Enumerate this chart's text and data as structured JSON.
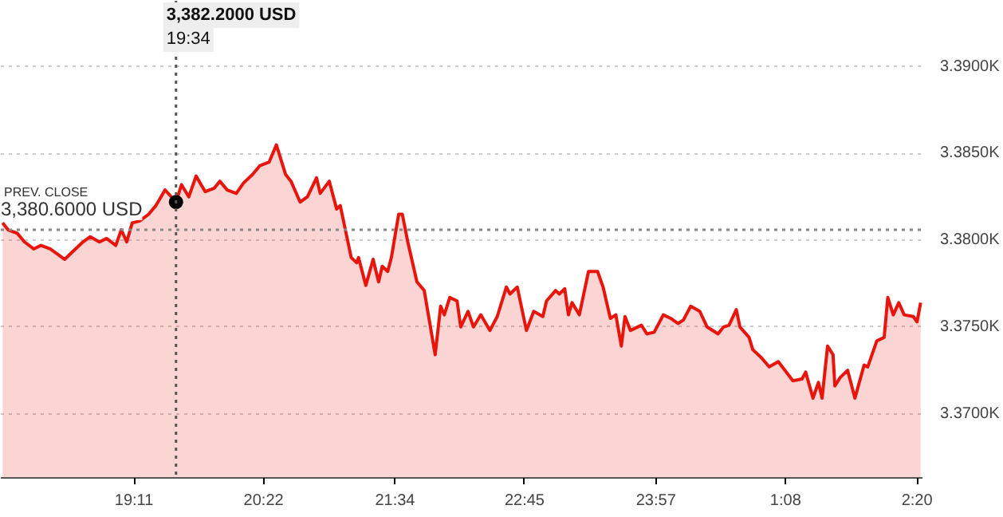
{
  "chart_data": {
    "type": "area",
    "xlim": [
      "2000-01-01T17:58",
      "2000-01-02T02:23"
    ],
    "ylim": [
      3366.3,
      3393.8
    ],
    "xticks": [
      {
        "value": "2000-01-01T19:11",
        "label": "19:11"
      },
      {
        "value": "2000-01-01T20:22",
        "label": "20:22"
      },
      {
        "value": "2000-01-01T21:34",
        "label": "21:34"
      },
      {
        "value": "2000-01-01T22:45",
        "label": "22:45"
      },
      {
        "value": "2000-01-01T23:57",
        "label": "23:57"
      },
      {
        "value": "2000-01-02T01:08",
        "label": "1:08"
      },
      {
        "value": "2000-01-02T02:20",
        "label": "2:20"
      }
    ],
    "yticks": [
      {
        "value": 3370,
        "label": "3.3700K"
      },
      {
        "value": 3375,
        "label": "3.3750K"
      },
      {
        "value": 3380,
        "label": "3.3800K"
      },
      {
        "value": 3385,
        "label": "3.3850K"
      },
      {
        "value": 3390,
        "label": "3.3900K"
      }
    ],
    "grid": "y",
    "series": [
      {
        "color": "#e8150d",
        "x": [
          "2000-01-01T17:59",
          "2000-01-01T18:02",
          "2000-01-01T18:07",
          "2000-01-01T18:11",
          "2000-01-01T18:16",
          "2000-01-01T18:20",
          "2000-01-01T18:25",
          "2000-01-01T18:29",
          "2000-01-01T18:33",
          "2000-01-01T18:37",
          "2000-01-01T18:43",
          "2000-01-01T18:47",
          "2000-01-01T18:52",
          "2000-01-01T18:56",
          "2000-01-01T19:01",
          "2000-01-01T19:04",
          "2000-01-01T19:07",
          "2000-01-01T19:10",
          "2000-01-01T19:14",
          "2000-01-01T19:19",
          "2000-01-01T19:23",
          "2000-01-01T19:28",
          "2000-01-01T19:34",
          "2000-01-01T19:37",
          "2000-01-01T19:41",
          "2000-01-01T19:45",
          "2000-01-01T19:50",
          "2000-01-01T19:55",
          "2000-01-01T19:58",
          "2000-01-01T20:02",
          "2000-01-01T20:07",
          "2000-01-01T20:11",
          "2000-01-01T20:16",
          "2000-01-01T20:20",
          "2000-01-01T20:25",
          "2000-01-01T20:29",
          "2000-01-01T20:34",
          "2000-01-01T20:37",
          "2000-01-01T20:42",
          "2000-01-01T20:46",
          "2000-01-01T20:51",
          "2000-01-01T20:53",
          "2000-01-01T20:58",
          "2000-01-01T21:02",
          "2000-01-01T21:04",
          "2000-01-01T21:10",
          "2000-01-01T21:13",
          "2000-01-01T21:14",
          "2000-01-01T21:18",
          "2000-01-01T21:22",
          "2000-01-01T21:25",
          "2000-01-01T21:27",
          "2000-01-01T21:30",
          "2000-01-01T21:32",
          "2000-01-01T21:36",
          "2000-01-01T21:38",
          "2000-01-01T21:41",
          "2000-01-01T21:46",
          "2000-01-01T21:50",
          "2000-01-01T21:56",
          "2000-01-01T21:59",
          "2000-01-01T22:01",
          "2000-01-01T22:04",
          "2000-01-01T22:08",
          "2000-01-01T22:10",
          "2000-01-01T22:14",
          "2000-01-01T22:17",
          "2000-01-01T22:21",
          "2000-01-01T22:26",
          "2000-01-01T22:30",
          "2000-01-01T22:35",
          "2000-01-01T22:37",
          "2000-01-01T22:41",
          "2000-01-01T22:46",
          "2000-01-01T22:50",
          "2000-01-01T22:55",
          "2000-01-01T22:57",
          "2000-01-01T23:02",
          "2000-01-01T23:04",
          "2000-01-01T23:07",
          "2000-01-01T23:09",
          "2000-01-01T23:11",
          "2000-01-01T23:15",
          "2000-01-01T23:20",
          "2000-01-01T23:25",
          "2000-01-01T23:28",
          "2000-01-01T23:32",
          "2000-01-01T23:35",
          "2000-01-01T23:38",
          "2000-01-01T23:40",
          "2000-01-01T23:43",
          "2000-01-01T23:49",
          "2000-01-01T23:52",
          "2000-01-01T23:56",
          "2000-01-02T00:01",
          "2000-01-02T00:05",
          "2000-01-02T00:09",
          "2000-01-02T00:12",
          "2000-01-02T00:16",
          "2000-01-02T00:21",
          "2000-01-02T00:25",
          "2000-01-02T00:31",
          "2000-01-02T00:34",
          "2000-01-02T00:37",
          "2000-01-02T00:41",
          "2000-01-02T00:43",
          "2000-01-02T00:48",
          "2000-01-02T00:50",
          "2000-01-02T00:55",
          "2000-01-02T00:59",
          "2000-01-02T01:04",
          "2000-01-02T01:12",
          "2000-01-02T01:17",
          "2000-01-02T01:19",
          "2000-01-02T01:23",
          "2000-01-02T01:26",
          "2000-01-02T01:28",
          "2000-01-02T01:31",
          "2000-01-02T01:34",
          "2000-01-02T01:35",
          "2000-01-02T01:38",
          "2000-01-02T01:42",
          "2000-01-02T01:46",
          "2000-01-02T01:51",
          "2000-01-02T01:53",
          "2000-01-02T01:58",
          "2000-01-02T02:02",
          "2000-01-02T02:04",
          "2000-01-02T02:07",
          "2000-01-02T02:10",
          "2000-01-02T02:13",
          "2000-01-02T02:18",
          "2000-01-02T02:20",
          "2000-01-02T02:22"
        ],
        "values": [
          3381.0,
          3380.6,
          3380.4,
          3379.9,
          3379.5,
          3379.7,
          3379.5,
          3379.2,
          3378.9,
          3379.3,
          3379.9,
          3380.2,
          3379.9,
          3380.1,
          3379.7,
          3380.6,
          3379.9,
          3381.0,
          3381.1,
          3381.5,
          3382.0,
          3382.9,
          3382.2,
          3383.2,
          3382.5,
          3383.7,
          3382.8,
          3383.0,
          3383.4,
          3382.9,
          3382.7,
          3383.3,
          3383.8,
          3384.3,
          3384.5,
          3385.5,
          3383.8,
          3383.4,
          3382.2,
          3382.5,
          3383.6,
          3382.7,
          3383.4,
          3381.8,
          3382.0,
          3379.0,
          3378.7,
          3379.0,
          3377.4,
          3378.9,
          3377.6,
          3378.5,
          3378.2,
          3379.0,
          3381.5,
          3381.5,
          3379.9,
          3377.6,
          3377.1,
          3373.4,
          3376.2,
          3375.7,
          3376.7,
          3376.5,
          3375.0,
          3375.9,
          3375.0,
          3375.7,
          3374.8,
          3375.6,
          3377.3,
          3376.9,
          3377.3,
          3374.8,
          3375.9,
          3375.6,
          3376.5,
          3377.1,
          3376.9,
          3377.2,
          3375.7,
          3376.4,
          3375.7,
          3378.2,
          3378.2,
          3377.3,
          3375.5,
          3375.7,
          3373.9,
          3375.6,
          3374.8,
          3375.1,
          3374.6,
          3374.7,
          3375.7,
          3375.5,
          3375.2,
          3375.4,
          3376.2,
          3375.9,
          3375.0,
          3374.6,
          3375.0,
          3375.1,
          3376.0,
          3375.0,
          3374.4,
          3373.7,
          3373.2,
          3372.7,
          3373.0,
          3371.9,
          3372.0,
          3372.4,
          3370.9,
          3371.8,
          3370.9,
          3373.9,
          3373.4,
          3371.6,
          3372.1,
          3372.5,
          3370.9,
          3372.8,
          3372.7,
          3374.2,
          3374.4,
          3376.7,
          3375.7,
          3376.4,
          3375.7,
          3375.6,
          3375.3,
          3376.4
        ]
      }
    ],
    "ref_lines": [
      {
        "axis": "y",
        "value": 3380.6,
        "label": "PREV. CLOSE",
        "color": "#888888",
        "line_style": "dotted"
      },
      {
        "axis": "x",
        "value": "2000-01-01T19:34",
        "color": "#555555",
        "line_style": "dotted"
      }
    ],
    "annotations": [
      {
        "text": "3,380.6000 USD",
        "x": "2000-01-01T17:58",
        "y": 3380.6
      },
      "3,382.2000 USD",
      "19:34"
    ]
  }
}
